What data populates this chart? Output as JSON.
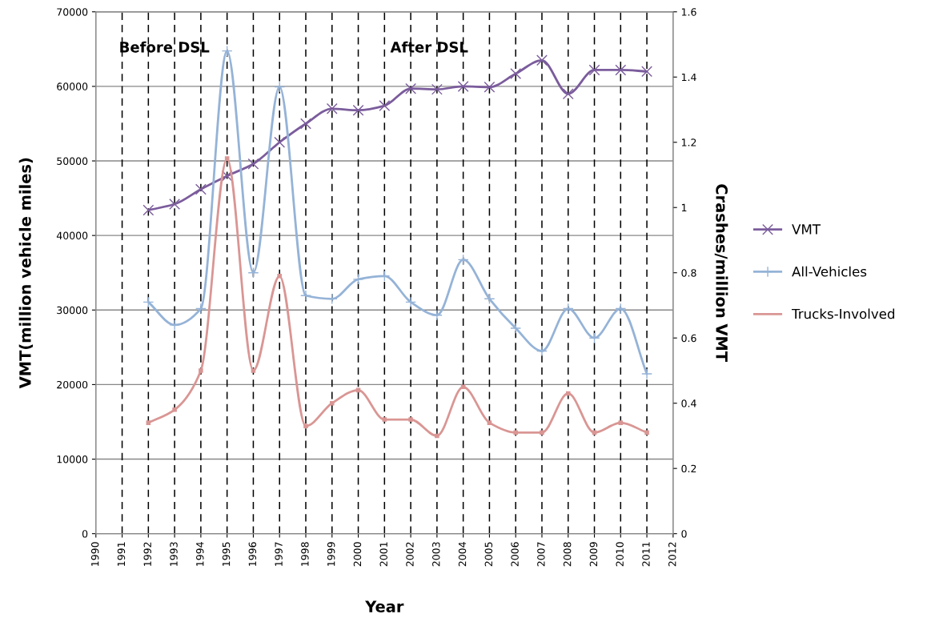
{
  "chart_data": {
    "type": "line",
    "xlabel": "Year",
    "ylabel": "VMT(million vehicle miles)",
    "y2label": "Crashes/million VMT",
    "x": [
      1992,
      1993,
      1994,
      1995,
      1996,
      1997,
      1998,
      1999,
      2000,
      2001,
      2002,
      2003,
      2004,
      2005,
      2006,
      2007,
      2008,
      2009,
      2010,
      2011
    ],
    "series": [
      {
        "name": "VMT",
        "color": "#7b5c9c",
        "marker": "cross",
        "values": [
          43400,
          44200,
          46200,
          48000,
          49600,
          52500,
          55000,
          57000,
          56800,
          57400,
          59700,
          59600,
          60000,
          59900,
          61700,
          63500,
          59000,
          62200,
          62200,
          62000
        ]
      },
      {
        "name": "All-Vehicles",
        "color": "#95b3d7",
        "marker": "plus",
        "axis": "y2",
        "values": [
          0.71,
          0.64,
          0.69,
          1.48,
          0.8,
          1.37,
          0.73,
          0.72,
          0.78,
          0.79,
          0.71,
          0.67,
          0.84,
          0.72,
          0.63,
          0.56,
          0.69,
          0.6,
          0.69,
          0.49
        ]
      },
      {
        "name": "Trucks-Involved",
        "color": "#d99694",
        "marker": "square",
        "axis": "y2",
        "values": [
          0.34,
          0.38,
          0.5,
          1.15,
          0.5,
          0.79,
          0.33,
          0.4,
          0.44,
          0.35,
          0.35,
          0.3,
          0.45,
          0.34,
          0.31,
          0.31,
          0.43,
          0.31,
          0.34,
          0.31
        ]
      }
    ],
    "xlim": [
      1990,
      2012
    ],
    "xticks": [
      1990,
      1991,
      1992,
      1993,
      1994,
      1995,
      1996,
      1997,
      1998,
      1999,
      2000,
      2001,
      2002,
      2003,
      2004,
      2005,
      2006,
      2007,
      2008,
      2009,
      2010,
      2011,
      2012
    ],
    "ylim": [
      0,
      70000
    ],
    "yticks": [
      0,
      10000,
      20000,
      30000,
      40000,
      50000,
      60000,
      70000
    ],
    "y2lim": [
      0,
      1.6
    ],
    "y2ticks": [
      0,
      0.2,
      0.4,
      0.6,
      0.8,
      1,
      1.2,
      1.4,
      1.6
    ],
    "ref_lines": [
      {
        "axis": "x",
        "value": 1991,
        "line_style": "dashed",
        "color": "#000000"
      },
      {
        "axis": "x",
        "value": 1992,
        "line_style": "dashed",
        "color": "#000000"
      },
      {
        "axis": "x",
        "value": 1993,
        "line_style": "dashed",
        "color": "#000000"
      },
      {
        "axis": "x",
        "value": 1994,
        "line_style": "dashed",
        "color": "#000000"
      },
      {
        "axis": "x",
        "value": 1995,
        "line_style": "dashed",
        "color": "#000000"
      },
      {
        "axis": "x",
        "value": 1996,
        "line_style": "dashed",
        "color": "#000000"
      },
      {
        "axis": "x",
        "value": 1997,
        "line_style": "dashed",
        "color": "#000000"
      },
      {
        "axis": "x",
        "value": 1998,
        "line_style": "dashed",
        "color": "#000000"
      },
      {
        "axis": "x",
        "value": 1999,
        "line_style": "dashed",
        "color": "#000000"
      },
      {
        "axis": "x",
        "value": 2000,
        "line_style": "dashed",
        "color": "#000000"
      },
      {
        "axis": "x",
        "value": 2001,
        "line_style": "dashed",
        "color": "#000000"
      },
      {
        "axis": "x",
        "value": 2002,
        "line_style": "dashed",
        "color": "#000000"
      },
      {
        "axis": "x",
        "value": 2003,
        "line_style": "dashed",
        "color": "#000000"
      },
      {
        "axis": "x",
        "value": 2004,
        "line_style": "dashed",
        "color": "#000000"
      },
      {
        "axis": "x",
        "value": 2005,
        "line_style": "dashed",
        "color": "#000000"
      },
      {
        "axis": "x",
        "value": 2006,
        "line_style": "dashed",
        "color": "#000000"
      },
      {
        "axis": "x",
        "value": 2007,
        "line_style": "dashed",
        "color": "#000000"
      },
      {
        "axis": "x",
        "value": 2008,
        "line_style": "dashed",
        "color": "#000000"
      },
      {
        "axis": "x",
        "value": 2009,
        "line_style": "dashed",
        "color": "#000000"
      },
      {
        "axis": "x",
        "value": 2010,
        "line_style": "dashed",
        "color": "#000000"
      },
      {
        "axis": "x",
        "value": 2011,
        "line_style": "dashed",
        "color": "#000000"
      }
    ],
    "annotations": [
      "Before DSL",
      "After DSL"
    ],
    "grid": "y",
    "legend": "right"
  }
}
